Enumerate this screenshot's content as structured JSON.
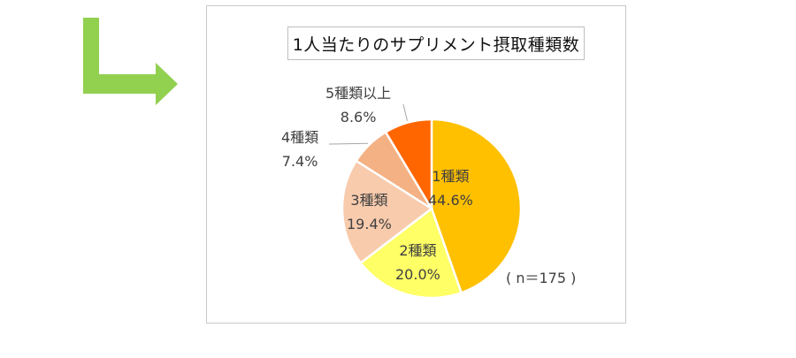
{
  "colors": {
    "arrow": "#92d050",
    "slice_1": "#ffc000",
    "slice_2": "#ffff66",
    "slice_3": "#f8cbad",
    "slice_4": "#f4b183",
    "slice_5": "#ff6600"
  },
  "icons": {
    "arrow": "green-down-right-arrow-icon"
  },
  "sample_size": "( n＝175 )",
  "chart_data": {
    "type": "pie",
    "title": "1人当たりのサプリメント摂取種類数",
    "categories": [
      "1種類",
      "2種類",
      "3種類",
      "4種類",
      "5種類以上"
    ],
    "values": [
      44.6,
      20.0,
      19.4,
      7.4,
      8.6
    ],
    "value_labels": [
      "44.6%",
      "20.0%",
      "19.4%",
      "7.4%",
      "8.6%"
    ],
    "start": "12 o'clock",
    "direction": "clockwise",
    "legend": "none"
  }
}
